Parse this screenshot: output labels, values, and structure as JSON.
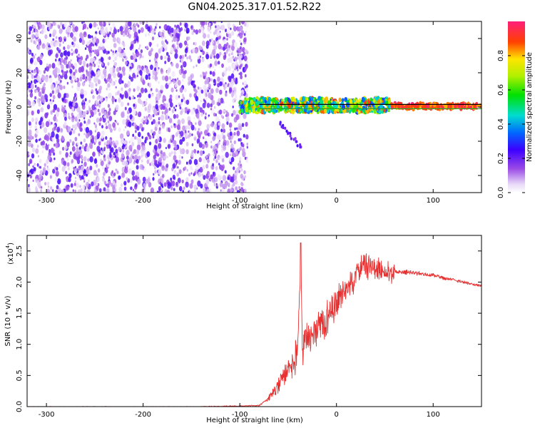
{
  "title": "GN04.2025.317.01.52.R22",
  "chart_data": [
    {
      "type": "heatmap",
      "xlabel": "Height of straight line (km)",
      "ylabel": "Frequency (Hz)",
      "xlim": [
        -320,
        150
      ],
      "ylim": [
        -50,
        50
      ],
      "xticks": [
        -300,
        -200,
        -100,
        0,
        100
      ],
      "xtick_labels": [
        "-300",
        "-200",
        "-100",
        "0",
        "100"
      ],
      "yticks": [
        -40,
        -20,
        0,
        20,
        40
      ],
      "ytick_labels": [
        "-40",
        "-20",
        "0",
        "20",
        "40"
      ],
      "description_regions": [
        {
          "x_range": [
            -320,
            -92
          ],
          "y_range": [
            -50,
            50
          ],
          "amplitude": [
            0.05,
            0.25
          ]
        },
        {
          "x_range": [
            -100,
            55
          ],
          "y_range": [
            -3,
            5
          ],
          "amplitude": [
            0.3,
            0.9
          ]
        },
        {
          "x_range": [
            55,
            150
          ],
          "y_range": [
            -1,
            2
          ],
          "amplitude": [
            0.8,
            1.0
          ]
        }
      ],
      "line_tracks": [
        {
          "y": 1.5,
          "x_range": [
            -80,
            150
          ],
          "color": "#000000"
        },
        {
          "y": -1.0,
          "x_range": [
            -80,
            150
          ],
          "color": "#2aa52a"
        }
      ],
      "colorbar": {
        "label": "Normalized spectral amplitude",
        "range": [
          0,
          1
        ],
        "ticks": [
          0.0,
          0.2,
          0.4,
          0.6,
          0.8
        ],
        "tick_labels": [
          "0.0",
          "0.2",
          "0.4",
          "0.6",
          "0.8"
        ]
      }
    },
    {
      "type": "line",
      "xlabel": "Height of straight line (km)",
      "ylabel": "SNR (10 * v/v)",
      "scale_label": "(x10",
      "scale_exp": "4",
      "scale_close": ")",
      "xlim": [
        -320,
        150
      ],
      "ylim": [
        0,
        2.75
      ],
      "xticks": [
        -300,
        -200,
        -100,
        0,
        100
      ],
      "xtick_labels": [
        "-300",
        "-200",
        "-100",
        "0",
        "100"
      ],
      "yticks": [
        0.0,
        0.5,
        1.0,
        1.5,
        2.0,
        2.5
      ],
      "ytick_labels": [
        "0.0",
        "0.5",
        "1.0",
        "1.5",
        "2.0",
        "2.5"
      ],
      "series": [
        {
          "name": "SNR",
          "color": "#e83030",
          "x": [
            -320,
            -250,
            -150,
            -80,
            -72,
            -65,
            -60,
            -50,
            -40,
            -37,
            -35,
            -25,
            -20,
            -10,
            0,
            10,
            20,
            28,
            35,
            45,
            55,
            60,
            70,
            80,
            90,
            100,
            110,
            120,
            130,
            140,
            150
          ],
          "y": [
            0.0,
            0.0,
            0.0,
            0.02,
            0.12,
            0.3,
            0.45,
            0.75,
            1.0,
            2.63,
            1.1,
            1.3,
            1.45,
            1.6,
            1.8,
            2.05,
            2.2,
            2.4,
            2.35,
            2.3,
            2.25,
            2.2,
            2.18,
            2.17,
            2.15,
            2.13,
            2.08,
            2.05,
            2.02,
            1.98,
            1.95
          ]
        }
      ]
    }
  ]
}
